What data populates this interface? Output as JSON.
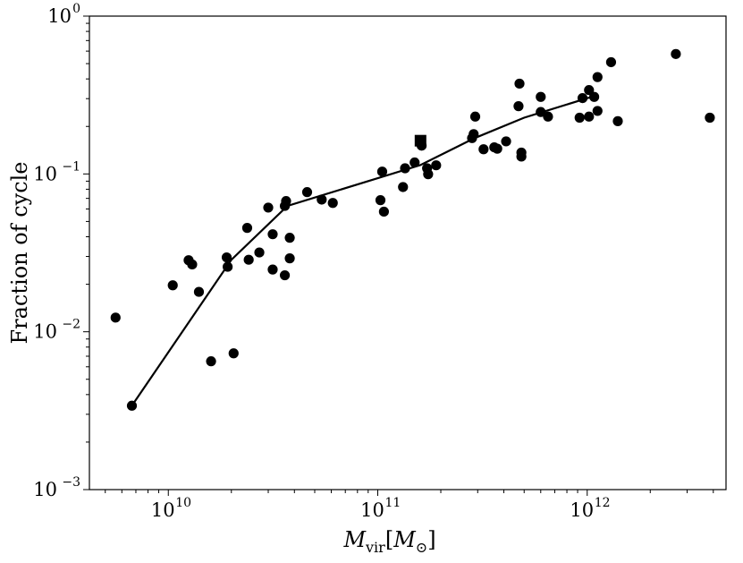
{
  "chart_data": {
    "type": "scatter",
    "title": "",
    "xlabel": {
      "main": "M",
      "sub": "vir",
      "unit": "M",
      "unit_sub": "⊙"
    },
    "ylabel": "Fraction of cycle",
    "xscale": "log",
    "yscale": "log",
    "xlim": [
      4200000000.0,
      4600000000000.0
    ],
    "ylim": [
      0.001,
      1.0
    ],
    "x_ticks": [
      {
        "value": 10000000000.0,
        "base": "10",
        "exp": "10"
      },
      {
        "value": 100000000000.0,
        "base": "10",
        "exp": "11"
      },
      {
        "value": 1000000000000.0,
        "base": "10",
        "exp": "12"
      }
    ],
    "y_ticks": [
      {
        "value": 0.001,
        "base": "10",
        "exp": "−3"
      },
      {
        "value": 0.01,
        "base": "10",
        "exp": "−2"
      },
      {
        "value": 0.1,
        "base": "10",
        "exp": "−1"
      },
      {
        "value": 1.0,
        "base": "10",
        "exp": "0"
      }
    ],
    "grid": false,
    "legend": "none",
    "colors": {
      "marker": "#000000",
      "line": "#000000",
      "frame": "#000000"
    },
    "series": [
      {
        "kind": "scatter",
        "marker": "circle",
        "points": [
          [
            5600000000.0,
            0.0123
          ],
          [
            6700000000.0,
            0.0034
          ],
          [
            10500000000.0,
            0.0197
          ],
          [
            12500000000.0,
            0.0284
          ],
          [
            13000000000.0,
            0.0267
          ],
          [
            14000000000.0,
            0.0179
          ],
          [
            16000000000.0,
            0.0065
          ],
          [
            19000000000.0,
            0.0296
          ],
          [
            19200000000.0,
            0.0258
          ],
          [
            20500000000.0,
            0.0073
          ],
          [
            23800000000.0,
            0.0455
          ],
          [
            24200000000.0,
            0.0286
          ],
          [
            27200000000.0,
            0.0318
          ],
          [
            30000000000.0,
            0.0612
          ],
          [
            31500000000.0,
            0.0248
          ],
          [
            31500000000.0,
            0.0415
          ],
          [
            36000000000.0,
            0.0228
          ],
          [
            36000000000.0,
            0.0627
          ],
          [
            36500000000.0,
            0.0673
          ],
          [
            38000000000.0,
            0.0394
          ],
          [
            38000000000.0,
            0.0292
          ],
          [
            46000000000.0,
            0.0767
          ],
          [
            54000000000.0,
            0.0688
          ],
          [
            61000000000.0,
            0.0655
          ],
          [
            103000000000.0,
            0.0682
          ],
          [
            105000000000.0,
            0.1035
          ],
          [
            107000000000.0,
            0.0577
          ],
          [
            132000000000.0,
            0.0826
          ],
          [
            135000000000.0,
            0.1086
          ],
          [
            150000000000.0,
            0.1182
          ],
          [
            162000000000.0,
            0.1511
          ],
          [
            172000000000.0,
            0.1086
          ],
          [
            174000000000.0,
            0.0996
          ],
          [
            190000000000.0,
            0.1134
          ],
          [
            282000000000.0,
            0.1687
          ],
          [
            287000000000.0,
            0.1788
          ],
          [
            292000000000.0,
            0.2308
          ],
          [
            320000000000.0,
            0.1434
          ],
          [
            360000000000.0,
            0.1475
          ],
          [
            372000000000.0,
            0.1445
          ],
          [
            410000000000.0,
            0.1608
          ],
          [
            470000000000.0,
            0.2687
          ],
          [
            475000000000.0,
            0.3734
          ],
          [
            485000000000.0,
            0.1366
          ],
          [
            485000000000.0,
            0.1288
          ],
          [
            600000000000.0,
            0.3078
          ],
          [
            600000000000.0,
            0.2468
          ],
          [
            650000000000.0,
            0.2308
          ],
          [
            920000000000.0,
            0.2271
          ],
          [
            950000000000.0,
            0.3024
          ],
          [
            1020000000000.0,
            0.3398
          ],
          [
            1020000000000.0,
            0.2308
          ],
          [
            1080000000000.0,
            0.3078
          ],
          [
            1120000000000.0,
            0.4109
          ],
          [
            1120000000000.0,
            0.2508
          ],
          [
            1300000000000.0,
            0.5106
          ],
          [
            1400000000000.0,
            0.2159
          ],
          [
            2650000000000.0,
            0.5753
          ],
          [
            3850000000000.0,
            0.2271
          ]
        ]
      },
      {
        "kind": "scatter",
        "marker": "square",
        "points": [
          [
            160000000000.0,
            0.1624
          ]
        ]
      },
      {
        "kind": "line",
        "points": [
          [
            6700000000.0,
            0.0034
          ],
          [
            20000000000.0,
            0.0286
          ],
          [
            37000000000.0,
            0.0627
          ],
          [
            160000000000.0,
            0.1139
          ],
          [
            290000000000.0,
            0.1687
          ],
          [
            500000000000.0,
            0.2271
          ],
          [
            1050000000000.0,
            0.3078
          ]
        ]
      }
    ]
  }
}
